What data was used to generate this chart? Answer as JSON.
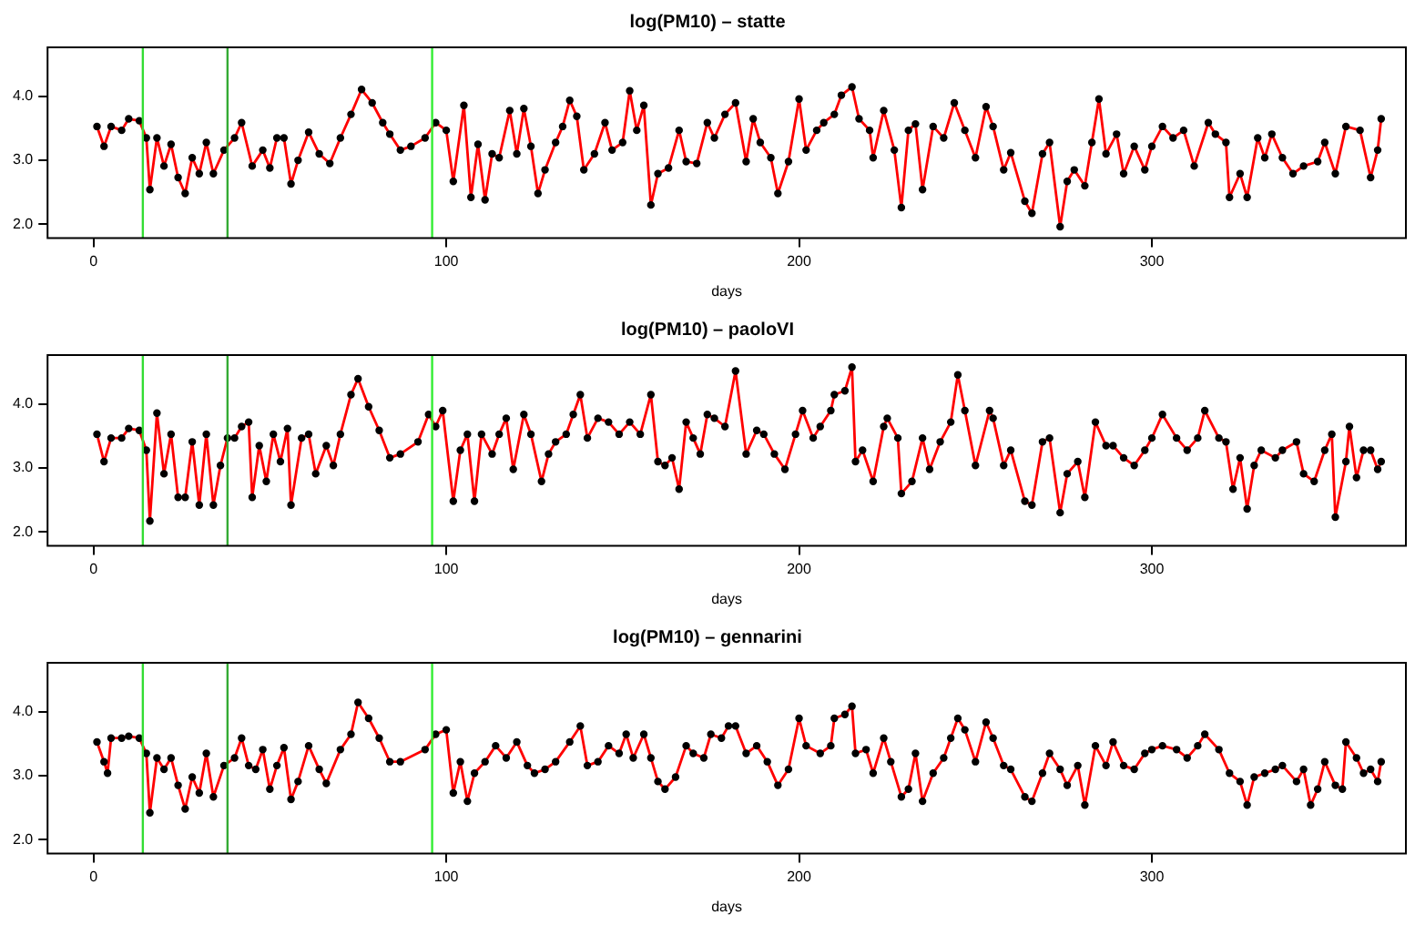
{
  "chart_data": [
    {
      "type": "line",
      "title": "log(PM10) – statte",
      "xlabel": "days",
      "xlim": [
        -13,
        372
      ],
      "ylim": [
        1.78,
        4.77
      ],
      "xticks": [
        0,
        100,
        200,
        300
      ],
      "yticks": [
        {
          "value": 2,
          "label": "2.0"
        },
        {
          "value": 3,
          "label": "3.0"
        },
        {
          "value": 4,
          "label": "4.0"
        }
      ],
      "grid": false,
      "legend": false,
      "ref_lines": [
        {
          "axis": "x",
          "value": 14,
          "color": "#33dd33"
        },
        {
          "axis": "x",
          "value": 38,
          "color": "#33aa33"
        },
        {
          "axis": "x",
          "value": 96,
          "color": "#33ee33"
        }
      ],
      "x": [
        1,
        3,
        5,
        8,
        10,
        13,
        15,
        16,
        18,
        20,
        22,
        24,
        26,
        28,
        30,
        32,
        34,
        37,
        40,
        42,
        45,
        48,
        50,
        52,
        54,
        56,
        58,
        61,
        64,
        67,
        70,
        73,
        76,
        79,
        82,
        84,
        87,
        90,
        94,
        97,
        100,
        102,
        105,
        107,
        109,
        111,
        113,
        115,
        118,
        120,
        122,
        124,
        126,
        128,
        131,
        133,
        135,
        137,
        139,
        142,
        145,
        147,
        150,
        152,
        154,
        156,
        158,
        160,
        163,
        166,
        168,
        171,
        174,
        176,
        179,
        182,
        185,
        187,
        189,
        192,
        194,
        197,
        200,
        202,
        205,
        207,
        210,
        212,
        215,
        217,
        220,
        221,
        224,
        227,
        229,
        231,
        233,
        235,
        238,
        241,
        244,
        247,
        250,
        253,
        255,
        258,
        260,
        264,
        266,
        269,
        271,
        274,
        276,
        278,
        281,
        283,
        285,
        287,
        290,
        292,
        295,
        298,
        300,
        303,
        306,
        309,
        312,
        316,
        318,
        321,
        322,
        325,
        327,
        330,
        332,
        334,
        337,
        340,
        343,
        347,
        349,
        352,
        355,
        359,
        362,
        364,
        365
      ],
      "series": [
        {
          "type": "scatter",
          "color": "#000000",
          "values": [
            3.53,
            3.22,
            3.53,
            3.47,
            3.65,
            3.62,
            3.35,
            2.54,
            3.35,
            2.91,
            3.25,
            2.73,
            2.48,
            3.04,
            2.79,
            3.28,
            2.79,
            3.16,
            3.35,
            3.59,
            2.91,
            3.16,
            2.88,
            3.35,
            3.35,
            2.63,
            3.0,
            3.44,
            3.1,
            2.95,
            3.35,
            3.72,
            4.11,
            3.9,
            3.59,
            3.41,
            3.16,
            3.22,
            3.35,
            3.59,
            3.47,
            2.67,
            3.86,
            2.42,
            3.25,
            2.38,
            3.1,
            3.04,
            3.78,
            3.1,
            3.81,
            3.22,
            2.48,
            2.85,
            3.28,
            3.53,
            3.94,
            3.69,
            2.85,
            3.1,
            3.59,
            3.16,
            3.28,
            4.09,
            3.47,
            3.86,
            2.3,
            2.79,
            2.88,
            3.47,
            2.98,
            2.95,
            3.59,
            3.35,
            3.72,
            3.9,
            2.98,
            3.65,
            3.28,
            3.04,
            2.48,
            2.98,
            3.96,
            3.16,
            3.47,
            3.59,
            3.72,
            4.02,
            4.15,
            3.65,
            3.47,
            3.04,
            3.78,
            3.16,
            2.26,
            3.47,
            3.57,
            2.54,
            3.53,
            3.35,
            3.9,
            3.47,
            3.04,
            3.84,
            3.53,
            2.85,
            3.12,
            2.36,
            2.17,
            3.1,
            3.28,
            1.96,
            2.67,
            2.85,
            2.6,
            3.28,
            3.96,
            3.1,
            3.41,
            2.79,
            3.22,
            2.85,
            3.22,
            3.53,
            3.35,
            3.47,
            2.91,
            3.59,
            3.41,
            3.28,
            2.42,
            2.79,
            2.42,
            3.35,
            3.04,
            3.41,
            3.04,
            2.79,
            2.91,
            2.98,
            3.28,
            2.79,
            3.53,
            3.47,
            2.73,
            3.16,
            3.65
          ]
        },
        {
          "type": "line",
          "color": "#ff0000",
          "values": [
            3.53,
            3.22,
            3.53,
            3.47,
            3.65,
            3.62,
            3.35,
            2.54,
            3.35,
            2.91,
            3.25,
            2.73,
            2.48,
            3.04,
            2.79,
            3.28,
            2.79,
            3.16,
            3.35,
            3.59,
            2.91,
            3.16,
            2.88,
            3.35,
            3.35,
            2.63,
            3.0,
            3.44,
            3.1,
            2.95,
            3.35,
            3.72,
            4.11,
            3.9,
            3.59,
            3.41,
            3.16,
            3.22,
            3.35,
            3.59,
            3.47,
            2.67,
            3.86,
            2.42,
            3.25,
            2.38,
            3.1,
            3.04,
            3.78,
            3.1,
            3.81,
            3.22,
            2.48,
            2.85,
            3.28,
            3.53,
            3.94,
            3.69,
            2.85,
            3.1,
            3.59,
            3.16,
            3.28,
            4.09,
            3.47,
            3.86,
            2.3,
            2.79,
            2.88,
            3.47,
            2.98,
            2.95,
            3.59,
            3.35,
            3.72,
            3.9,
            2.98,
            3.65,
            3.28,
            3.04,
            2.48,
            2.98,
            3.96,
            3.16,
            3.47,
            3.59,
            3.72,
            4.02,
            4.15,
            3.65,
            3.47,
            3.04,
            3.78,
            3.16,
            2.26,
            3.47,
            3.57,
            2.54,
            3.53,
            3.35,
            3.9,
            3.47,
            3.04,
            3.84,
            3.53,
            2.85,
            3.12,
            2.36,
            2.17,
            3.1,
            3.28,
            1.96,
            2.67,
            2.85,
            2.6,
            3.28,
            3.96,
            3.1,
            3.41,
            2.79,
            3.22,
            2.85,
            3.22,
            3.53,
            3.35,
            3.47,
            2.91,
            3.59,
            3.41,
            3.28,
            2.42,
            2.79,
            2.42,
            3.35,
            3.04,
            3.41,
            3.04,
            2.79,
            2.91,
            2.98,
            3.28,
            2.79,
            3.53,
            3.47,
            2.73,
            3.16,
            3.65
          ]
        }
      ]
    },
    {
      "type": "line",
      "title": "log(PM10) – paoloVI",
      "xlabel": "days",
      "xlim": [
        -13,
        372
      ],
      "ylim": [
        1.78,
        4.77
      ],
      "xticks": [
        0,
        100,
        200,
        300
      ],
      "yticks": [
        {
          "value": 2,
          "label": "2.0"
        },
        {
          "value": 3,
          "label": "3.0"
        },
        {
          "value": 4,
          "label": "4.0"
        }
      ],
      "grid": false,
      "legend": false,
      "ref_lines": [
        {
          "axis": "x",
          "value": 14,
          "color": "#33dd33"
        },
        {
          "axis": "x",
          "value": 38,
          "color": "#33aa33"
        },
        {
          "axis": "x",
          "value": 96,
          "color": "#33ee33"
        }
      ],
      "x": [
        1,
        3,
        5,
        8,
        10,
        13,
        15,
        16,
        18,
        20,
        22,
        24,
        26,
        28,
        30,
        32,
        34,
        36,
        38,
        40,
        42,
        44,
        45,
        47,
        49,
        51,
        53,
        55,
        56,
        59,
        61,
        63,
        66,
        68,
        70,
        73,
        75,
        78,
        81,
        84,
        87,
        92,
        95,
        97,
        99,
        102,
        104,
        106,
        108,
        110,
        113,
        115,
        117,
        119,
        122,
        124,
        127,
        129,
        131,
        134,
        136,
        138,
        140,
        143,
        146,
        149,
        152,
        155,
        158,
        160,
        162,
        164,
        166,
        168,
        170,
        172,
        174,
        176,
        179,
        182,
        185,
        188,
        190,
        193,
        196,
        199,
        201,
        204,
        206,
        209,
        210,
        213,
        215,
        216,
        218,
        221,
        224,
        225,
        228,
        229,
        232,
        235,
        237,
        240,
        243,
        245,
        247,
        250,
        254,
        255,
        258,
        260,
        264,
        266,
        269,
        271,
        274,
        276,
        279,
        281,
        284,
        287,
        289,
        292,
        295,
        298,
        300,
        303,
        307,
        310,
        313,
        315,
        319,
        321,
        323,
        325,
        327,
        329,
        331,
        335,
        337,
        341,
        343,
        346,
        349,
        351,
        352,
        355,
        356,
        358,
        360,
        362,
        364,
        365
      ],
      "series": [
        {
          "type": "scatter",
          "color": "#000000",
          "values": [
            3.53,
            3.1,
            3.47,
            3.47,
            3.62,
            3.59,
            3.28,
            2.17,
            3.86,
            2.91,
            3.53,
            2.54,
            2.54,
            3.41,
            2.42,
            3.53,
            2.42,
            3.04,
            3.47,
            3.47,
            3.65,
            3.72,
            2.54,
            3.35,
            2.79,
            3.53,
            3.1,
            3.62,
            2.42,
            3.47,
            3.53,
            2.91,
            3.35,
            3.04,
            3.53,
            4.15,
            4.4,
            3.96,
            3.59,
            3.16,
            3.22,
            3.41,
            3.84,
            3.65,
            3.9,
            2.48,
            3.28,
            3.53,
            2.48,
            3.53,
            3.22,
            3.53,
            3.78,
            2.98,
            3.84,
            3.53,
            2.79,
            3.22,
            3.41,
            3.53,
            3.84,
            4.15,
            3.47,
            3.78,
            3.72,
            3.53,
            3.72,
            3.53,
            4.15,
            3.1,
            3.04,
            3.16,
            2.67,
            3.72,
            3.47,
            3.22,
            3.84,
            3.78,
            3.65,
            4.52,
            3.22,
            3.59,
            3.53,
            3.22,
            2.98,
            3.53,
            3.9,
            3.47,
            3.65,
            3.9,
            4.15,
            4.21,
            4.58,
            3.1,
            3.28,
            2.79,
            3.65,
            3.78,
            3.47,
            2.6,
            2.79,
            3.47,
            2.98,
            3.41,
            3.72,
            4.46,
            3.9,
            3.04,
            3.9,
            3.78,
            3.04,
            3.28,
            2.48,
            2.42,
            3.41,
            3.47,
            2.3,
            2.91,
            3.1,
            2.54,
            3.72,
            3.35,
            3.35,
            3.16,
            3.04,
            3.28,
            3.47,
            3.84,
            3.47,
            3.28,
            3.47,
            3.9,
            3.47,
            3.41,
            2.67,
            3.16,
            2.36,
            3.04,
            3.28,
            3.16,
            3.28,
            3.41,
            2.91,
            2.79,
            3.28,
            3.53,
            2.23,
            3.1,
            3.65,
            2.85,
            3.28,
            3.28,
            2.98,
            3.1
          ]
        },
        {
          "type": "line",
          "color": "#ff0000",
          "values": [
            3.53,
            3.1,
            3.47,
            3.47,
            3.62,
            3.59,
            3.28,
            2.17,
            3.86,
            2.91,
            3.53,
            2.54,
            2.54,
            3.41,
            2.42,
            3.53,
            2.42,
            3.04,
            3.47,
            3.47,
            3.65,
            3.72,
            2.54,
            3.35,
            2.79,
            3.53,
            3.1,
            3.62,
            2.42,
            3.47,
            3.53,
            2.91,
            3.35,
            3.04,
            3.53,
            4.15,
            4.4,
            3.96,
            3.59,
            3.16,
            3.22,
            3.41,
            3.84,
            3.65,
            3.9,
            2.48,
            3.28,
            3.53,
            2.48,
            3.53,
            3.22,
            3.53,
            3.78,
            2.98,
            3.84,
            3.53,
            2.79,
            3.22,
            3.41,
            3.53,
            3.84,
            4.15,
            3.47,
            3.78,
            3.72,
            3.53,
            3.72,
            3.53,
            4.15,
            3.1,
            3.04,
            3.16,
            2.67,
            3.72,
            3.47,
            3.22,
            3.84,
            3.78,
            3.65,
            4.52,
            3.22,
            3.59,
            3.53,
            3.22,
            2.98,
            3.53,
            3.9,
            3.47,
            3.65,
            3.9,
            4.15,
            4.21,
            4.58,
            3.1,
            3.28,
            2.79,
            3.65,
            3.78,
            3.47,
            2.6,
            2.79,
            3.47,
            2.98,
            3.41,
            3.72,
            4.46,
            3.9,
            3.04,
            3.9,
            3.78,
            3.04,
            3.28,
            2.48,
            2.42,
            3.41,
            3.47,
            2.3,
            2.91,
            3.1,
            2.54,
            3.72,
            3.35,
            3.35,
            3.16,
            3.04,
            3.28,
            3.47,
            3.84,
            3.47,
            3.28,
            3.47,
            3.9,
            3.47,
            3.41,
            2.67,
            3.16,
            2.36,
            3.04,
            3.28,
            3.16,
            3.28,
            3.41,
            2.91,
            2.79,
            3.28,
            3.53,
            2.23,
            3.1,
            3.65,
            2.85,
            3.28,
            3.28,
            2.98,
            3.1
          ]
        }
      ]
    },
    {
      "type": "line",
      "title": "log(PM10) – gennarini",
      "xlabel": "days",
      "xlim": [
        -13,
        372
      ],
      "ylim": [
        1.78,
        4.77
      ],
      "xticks": [
        0,
        100,
        200,
        300
      ],
      "yticks": [
        {
          "value": 2,
          "label": "2.0"
        },
        {
          "value": 3,
          "label": "3.0"
        },
        {
          "value": 4,
          "label": "4.0"
        }
      ],
      "grid": false,
      "legend": false,
      "ref_lines": [
        {
          "axis": "x",
          "value": 14,
          "color": "#33dd33"
        },
        {
          "axis": "x",
          "value": 38,
          "color": "#33aa33"
        },
        {
          "axis": "x",
          "value": 96,
          "color": "#33ee33"
        }
      ],
      "x": [
        1,
        3,
        4,
        5,
        8,
        10,
        13,
        15,
        16,
        18,
        20,
        22,
        24,
        26,
        28,
        30,
        32,
        34,
        37,
        40,
        42,
        44,
        46,
        48,
        50,
        52,
        54,
        56,
        58,
        61,
        64,
        66,
        70,
        73,
        75,
        78,
        81,
        84,
        87,
        94,
        97,
        100,
        102,
        104,
        106,
        108,
        111,
        114,
        117,
        120,
        123,
        125,
        128,
        131,
        135,
        138,
        140,
        143,
        146,
        149,
        151,
        153,
        156,
        158,
        160,
        162,
        165,
        168,
        170,
        173,
        175,
        178,
        180,
        182,
        185,
        188,
        191,
        194,
        197,
        200,
        202,
        206,
        209,
        210,
        213,
        215,
        216,
        219,
        221,
        224,
        226,
        229,
        231,
        233,
        235,
        238,
        241,
        243,
        245,
        247,
        250,
        253,
        255,
        258,
        260,
        264,
        266,
        269,
        271,
        274,
        276,
        279,
        281,
        284,
        287,
        289,
        292,
        295,
        298,
        300,
        303,
        307,
        310,
        313,
        315,
        319,
        322,
        325,
        327,
        329,
        332,
        335,
        337,
        341,
        343,
        345,
        347,
        349,
        352,
        354,
        355,
        358,
        360,
        362,
        364,
        365
      ],
      "series": [
        {
          "type": "scatter",
          "color": "#000000",
          "values": [
            3.53,
            3.22,
            3.04,
            3.59,
            3.59,
            3.62,
            3.59,
            3.35,
            2.42,
            3.28,
            3.1,
            3.28,
            2.85,
            2.48,
            2.98,
            2.73,
            3.35,
            2.67,
            3.16,
            3.28,
            3.59,
            3.16,
            3.1,
            3.41,
            2.79,
            3.16,
            3.44,
            2.63,
            2.91,
            3.47,
            3.1,
            2.88,
            3.41,
            3.65,
            4.15,
            3.9,
            3.59,
            3.22,
            3.22,
            3.41,
            3.65,
            3.72,
            2.73,
            3.22,
            2.6,
            3.04,
            3.22,
            3.47,
            3.28,
            3.53,
            3.16,
            3.04,
            3.1,
            3.22,
            3.53,
            3.78,
            3.16,
            3.22,
            3.47,
            3.35,
            3.65,
            3.28,
            3.65,
            3.28,
            2.91,
            2.79,
            2.98,
            3.47,
            3.35,
            3.28,
            3.65,
            3.59,
            3.78,
            3.78,
            3.35,
            3.47,
            3.22,
            2.85,
            3.1,
            3.9,
            3.47,
            3.35,
            3.47,
            3.9,
            3.96,
            4.09,
            3.35,
            3.41,
            3.04,
            3.59,
            3.22,
            2.67,
            2.79,
            3.35,
            2.6,
            3.04,
            3.28,
            3.59,
            3.9,
            3.72,
            3.22,
            3.84,
            3.59,
            3.16,
            3.1,
            2.67,
            2.6,
            3.04,
            3.35,
            3.1,
            2.85,
            3.16,
            2.54,
            3.47,
            3.16,
            3.53,
            3.16,
            3.1,
            3.35,
            3.41,
            3.47,
            3.41,
            3.28,
            3.47,
            3.65,
            3.41,
            3.04,
            2.91,
            2.54,
            2.98,
            3.04,
            3.1,
            3.16,
            2.91,
            3.1,
            2.54,
            2.79,
            3.22,
            2.85,
            2.79,
            3.53,
            3.28,
            3.04,
            3.1,
            2.91,
            3.22
          ]
        },
        {
          "type": "line",
          "color": "#ff0000",
          "values": [
            3.53,
            3.22,
            3.04,
            3.59,
            3.59,
            3.62,
            3.59,
            3.35,
            2.42,
            3.28,
            3.1,
            3.28,
            2.85,
            2.48,
            2.98,
            2.73,
            3.35,
            2.67,
            3.16,
            3.28,
            3.59,
            3.16,
            3.1,
            3.41,
            2.79,
            3.16,
            3.44,
            2.63,
            2.91,
            3.47,
            3.1,
            2.88,
            3.41,
            3.65,
            4.15,
            3.9,
            3.59,
            3.22,
            3.22,
            3.41,
            3.65,
            3.72,
            2.73,
            3.22,
            2.6,
            3.04,
            3.22,
            3.47,
            3.28,
            3.53,
            3.16,
            3.04,
            3.1,
            3.22,
            3.53,
            3.78,
            3.16,
            3.22,
            3.47,
            3.35,
            3.65,
            3.28,
            3.65,
            3.28,
            2.91,
            2.79,
            2.98,
            3.47,
            3.35,
            3.28,
            3.65,
            3.59,
            3.78,
            3.78,
            3.35,
            3.47,
            3.22,
            2.85,
            3.1,
            3.9,
            3.47,
            3.35,
            3.47,
            3.9,
            3.96,
            4.09,
            3.35,
            3.41,
            3.04,
            3.59,
            3.22,
            2.67,
            2.79,
            3.35,
            2.6,
            3.04,
            3.28,
            3.59,
            3.9,
            3.72,
            3.22,
            3.84,
            3.59,
            3.16,
            3.1,
            2.67,
            2.6,
            3.04,
            3.35,
            3.1,
            2.85,
            3.16,
            2.54,
            3.47,
            3.16,
            3.53,
            3.16,
            3.1,
            3.35,
            3.41,
            3.47,
            3.41,
            3.28,
            3.47,
            3.65,
            3.41,
            3.04,
            2.91,
            2.54,
            2.98,
            3.04,
            3.1,
            3.16,
            2.91,
            3.1,
            2.54,
            2.79,
            3.22,
            2.85,
            2.79,
            3.53,
            3.28,
            3.04,
            3.1,
            2.91,
            3.22
          ]
        }
      ]
    }
  ]
}
